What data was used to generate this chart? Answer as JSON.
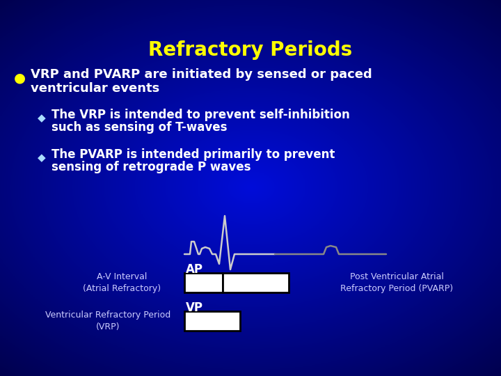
{
  "title": "Refractory Periods",
  "title_color": "#FFFF00",
  "title_fontsize": 20,
  "bullet1_line1": "VRP and PVARP are initiated by sensed or paced",
  "bullet1_line2": "ventricular events",
  "sub1_line1": "The VRP is intended to prevent self-inhibition",
  "sub1_line2": "such as sensing of T-waves",
  "sub2_line1": "The PVARP is intended primarily to prevent",
  "sub2_line2": "sensing of retrograde P waves",
  "label_av": "A-V Interval\n(Atrial Refractory)",
  "label_vrp": "Ventricular Refractory Period\n(VRP)",
  "label_pvarp": "Post Ventricular Atrial\nRefractory Period (PVARP)",
  "label_ap": "AP",
  "label_vp": "VP",
  "waveform_color": "#CCCCCC",
  "waveform_color2": "#888888",
  "text_color_white": "#FFFFFF",
  "text_color_label": "#CCCCFF",
  "bullet_color": "#FFFF00",
  "diamond_color": "#AADDFF",
  "box_facecolor": "#FFFFFF",
  "box_edgecolor": "#000000"
}
